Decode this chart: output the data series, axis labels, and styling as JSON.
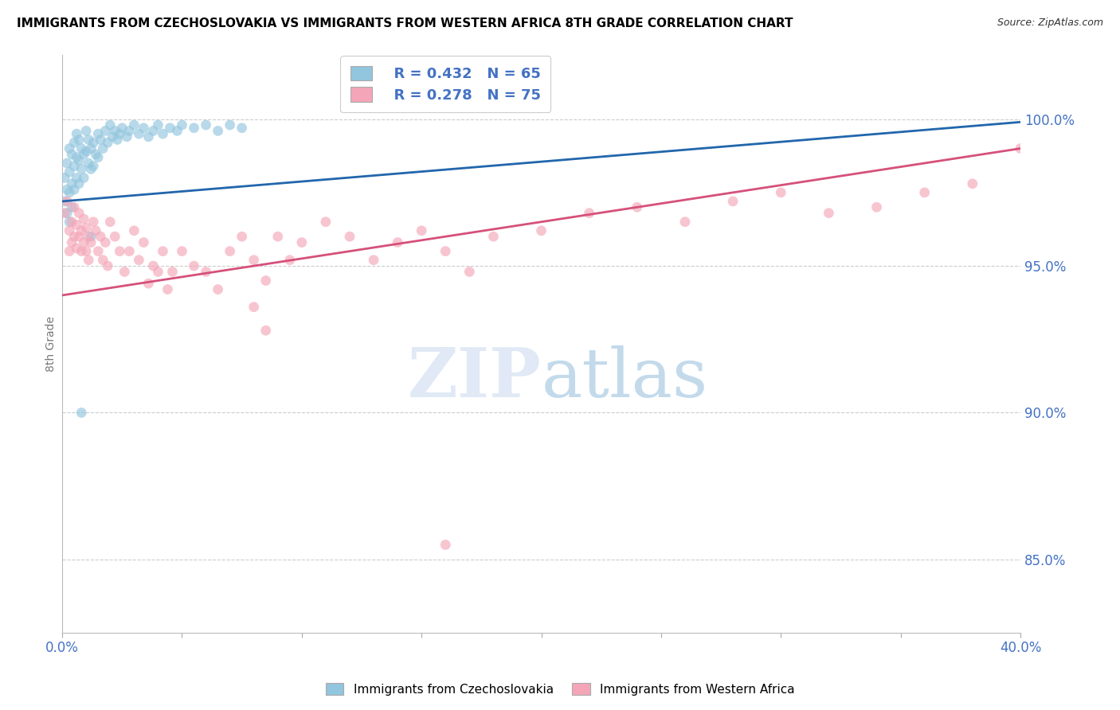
{
  "title": "IMMIGRANTS FROM CZECHOSLOVAKIA VS IMMIGRANTS FROM WESTERN AFRICA 8TH GRADE CORRELATION CHART",
  "source": "Source: ZipAtlas.com",
  "ylabel": "8th Grade",
  "ylabel_right_ticks": [
    "100.0%",
    "95.0%",
    "90.0%",
    "85.0%"
  ],
  "ylabel_right_values": [
    1.0,
    0.95,
    0.9,
    0.85
  ],
  "legend_blue_r": "R = 0.432",
  "legend_blue_n": "N = 65",
  "legend_pink_r": "R = 0.278",
  "legend_pink_n": "N = 75",
  "legend_blue_label": "Immigrants from Czechoslovakia",
  "legend_pink_label": "Immigrants from Western Africa",
  "color_blue": "#92c5de",
  "color_pink": "#f4a6b8",
  "color_blue_line": "#2166ac",
  "color_pink_line": "#d6507a",
  "color_axis_text": "#4472c4",
  "color_grid": "#cccccc",
  "color_title": "#000000",
  "background_color": "#ffffff",
  "xmin": 0.0,
  "xmax": 0.4,
  "ymin": 0.825,
  "ymax": 1.022,
  "blue_scatter_x": [
    0.001,
    0.001,
    0.002,
    0.002,
    0.002,
    0.003,
    0.003,
    0.003,
    0.003,
    0.004,
    0.004,
    0.004,
    0.005,
    0.005,
    0.005,
    0.006,
    0.006,
    0.006,
    0.007,
    0.007,
    0.007,
    0.008,
    0.008,
    0.009,
    0.009,
    0.01,
    0.01,
    0.011,
    0.011,
    0.012,
    0.012,
    0.013,
    0.013,
    0.014,
    0.015,
    0.015,
    0.016,
    0.017,
    0.018,
    0.019,
    0.02,
    0.021,
    0.022,
    0.023,
    0.024,
    0.025,
    0.027,
    0.028,
    0.03,
    0.032,
    0.034,
    0.036,
    0.038,
    0.04,
    0.042,
    0.045,
    0.048,
    0.05,
    0.055,
    0.06,
    0.065,
    0.07,
    0.075,
    0.012,
    0.008
  ],
  "blue_scatter_y": [
    0.98,
    0.972,
    0.985,
    0.976,
    0.968,
    0.99,
    0.982,
    0.975,
    0.965,
    0.988,
    0.978,
    0.97,
    0.992,
    0.984,
    0.976,
    0.995,
    0.987,
    0.98,
    0.993,
    0.986,
    0.978,
    0.99,
    0.983,
    0.988,
    0.98,
    0.996,
    0.989,
    0.993,
    0.985,
    0.99,
    0.983,
    0.992,
    0.984,
    0.988,
    0.995,
    0.987,
    0.993,
    0.99,
    0.996,
    0.992,
    0.998,
    0.994,
    0.996,
    0.993,
    0.995,
    0.997,
    0.994,
    0.996,
    0.998,
    0.995,
    0.997,
    0.994,
    0.996,
    0.998,
    0.995,
    0.997,
    0.996,
    0.998,
    0.997,
    0.998,
    0.996,
    0.998,
    0.997,
    0.96,
    0.9
  ],
  "pink_scatter_x": [
    0.001,
    0.002,
    0.003,
    0.003,
    0.004,
    0.004,
    0.005,
    0.005,
    0.006,
    0.006,
    0.007,
    0.007,
    0.008,
    0.008,
    0.009,
    0.009,
    0.01,
    0.01,
    0.011,
    0.011,
    0.012,
    0.013,
    0.014,
    0.015,
    0.016,
    0.017,
    0.018,
    0.019,
    0.02,
    0.022,
    0.024,
    0.026,
    0.028,
    0.03,
    0.032,
    0.034,
    0.036,
    0.038,
    0.04,
    0.042,
    0.044,
    0.046,
    0.05,
    0.055,
    0.06,
    0.065,
    0.07,
    0.075,
    0.08,
    0.085,
    0.09,
    0.095,
    0.1,
    0.11,
    0.12,
    0.13,
    0.14,
    0.15,
    0.16,
    0.17,
    0.18,
    0.2,
    0.22,
    0.24,
    0.26,
    0.28,
    0.3,
    0.32,
    0.34,
    0.36,
    0.38,
    0.4,
    0.08,
    0.085,
    0.16
  ],
  "pink_scatter_y": [
    0.968,
    0.972,
    0.962,
    0.955,
    0.965,
    0.958,
    0.97,
    0.96,
    0.964,
    0.956,
    0.968,
    0.96,
    0.962,
    0.955,
    0.966,
    0.958,
    0.963,
    0.955,
    0.96,
    0.952,
    0.958,
    0.965,
    0.962,
    0.955,
    0.96,
    0.952,
    0.958,
    0.95,
    0.965,
    0.96,
    0.955,
    0.948,
    0.955,
    0.962,
    0.952,
    0.958,
    0.944,
    0.95,
    0.948,
    0.955,
    0.942,
    0.948,
    0.955,
    0.95,
    0.948,
    0.942,
    0.955,
    0.96,
    0.952,
    0.945,
    0.96,
    0.952,
    0.958,
    0.965,
    0.96,
    0.952,
    0.958,
    0.962,
    0.955,
    0.948,
    0.96,
    0.962,
    0.968,
    0.97,
    0.965,
    0.972,
    0.975,
    0.968,
    0.97,
    0.975,
    0.978,
    0.99,
    0.936,
    0.928,
    0.855
  ],
  "blue_trend_x": [
    0.0,
    0.4
  ],
  "blue_trend_y": [
    0.972,
    0.999
  ],
  "pink_trend_x": [
    0.0,
    0.4
  ],
  "pink_trend_y": [
    0.94,
    0.99
  ]
}
